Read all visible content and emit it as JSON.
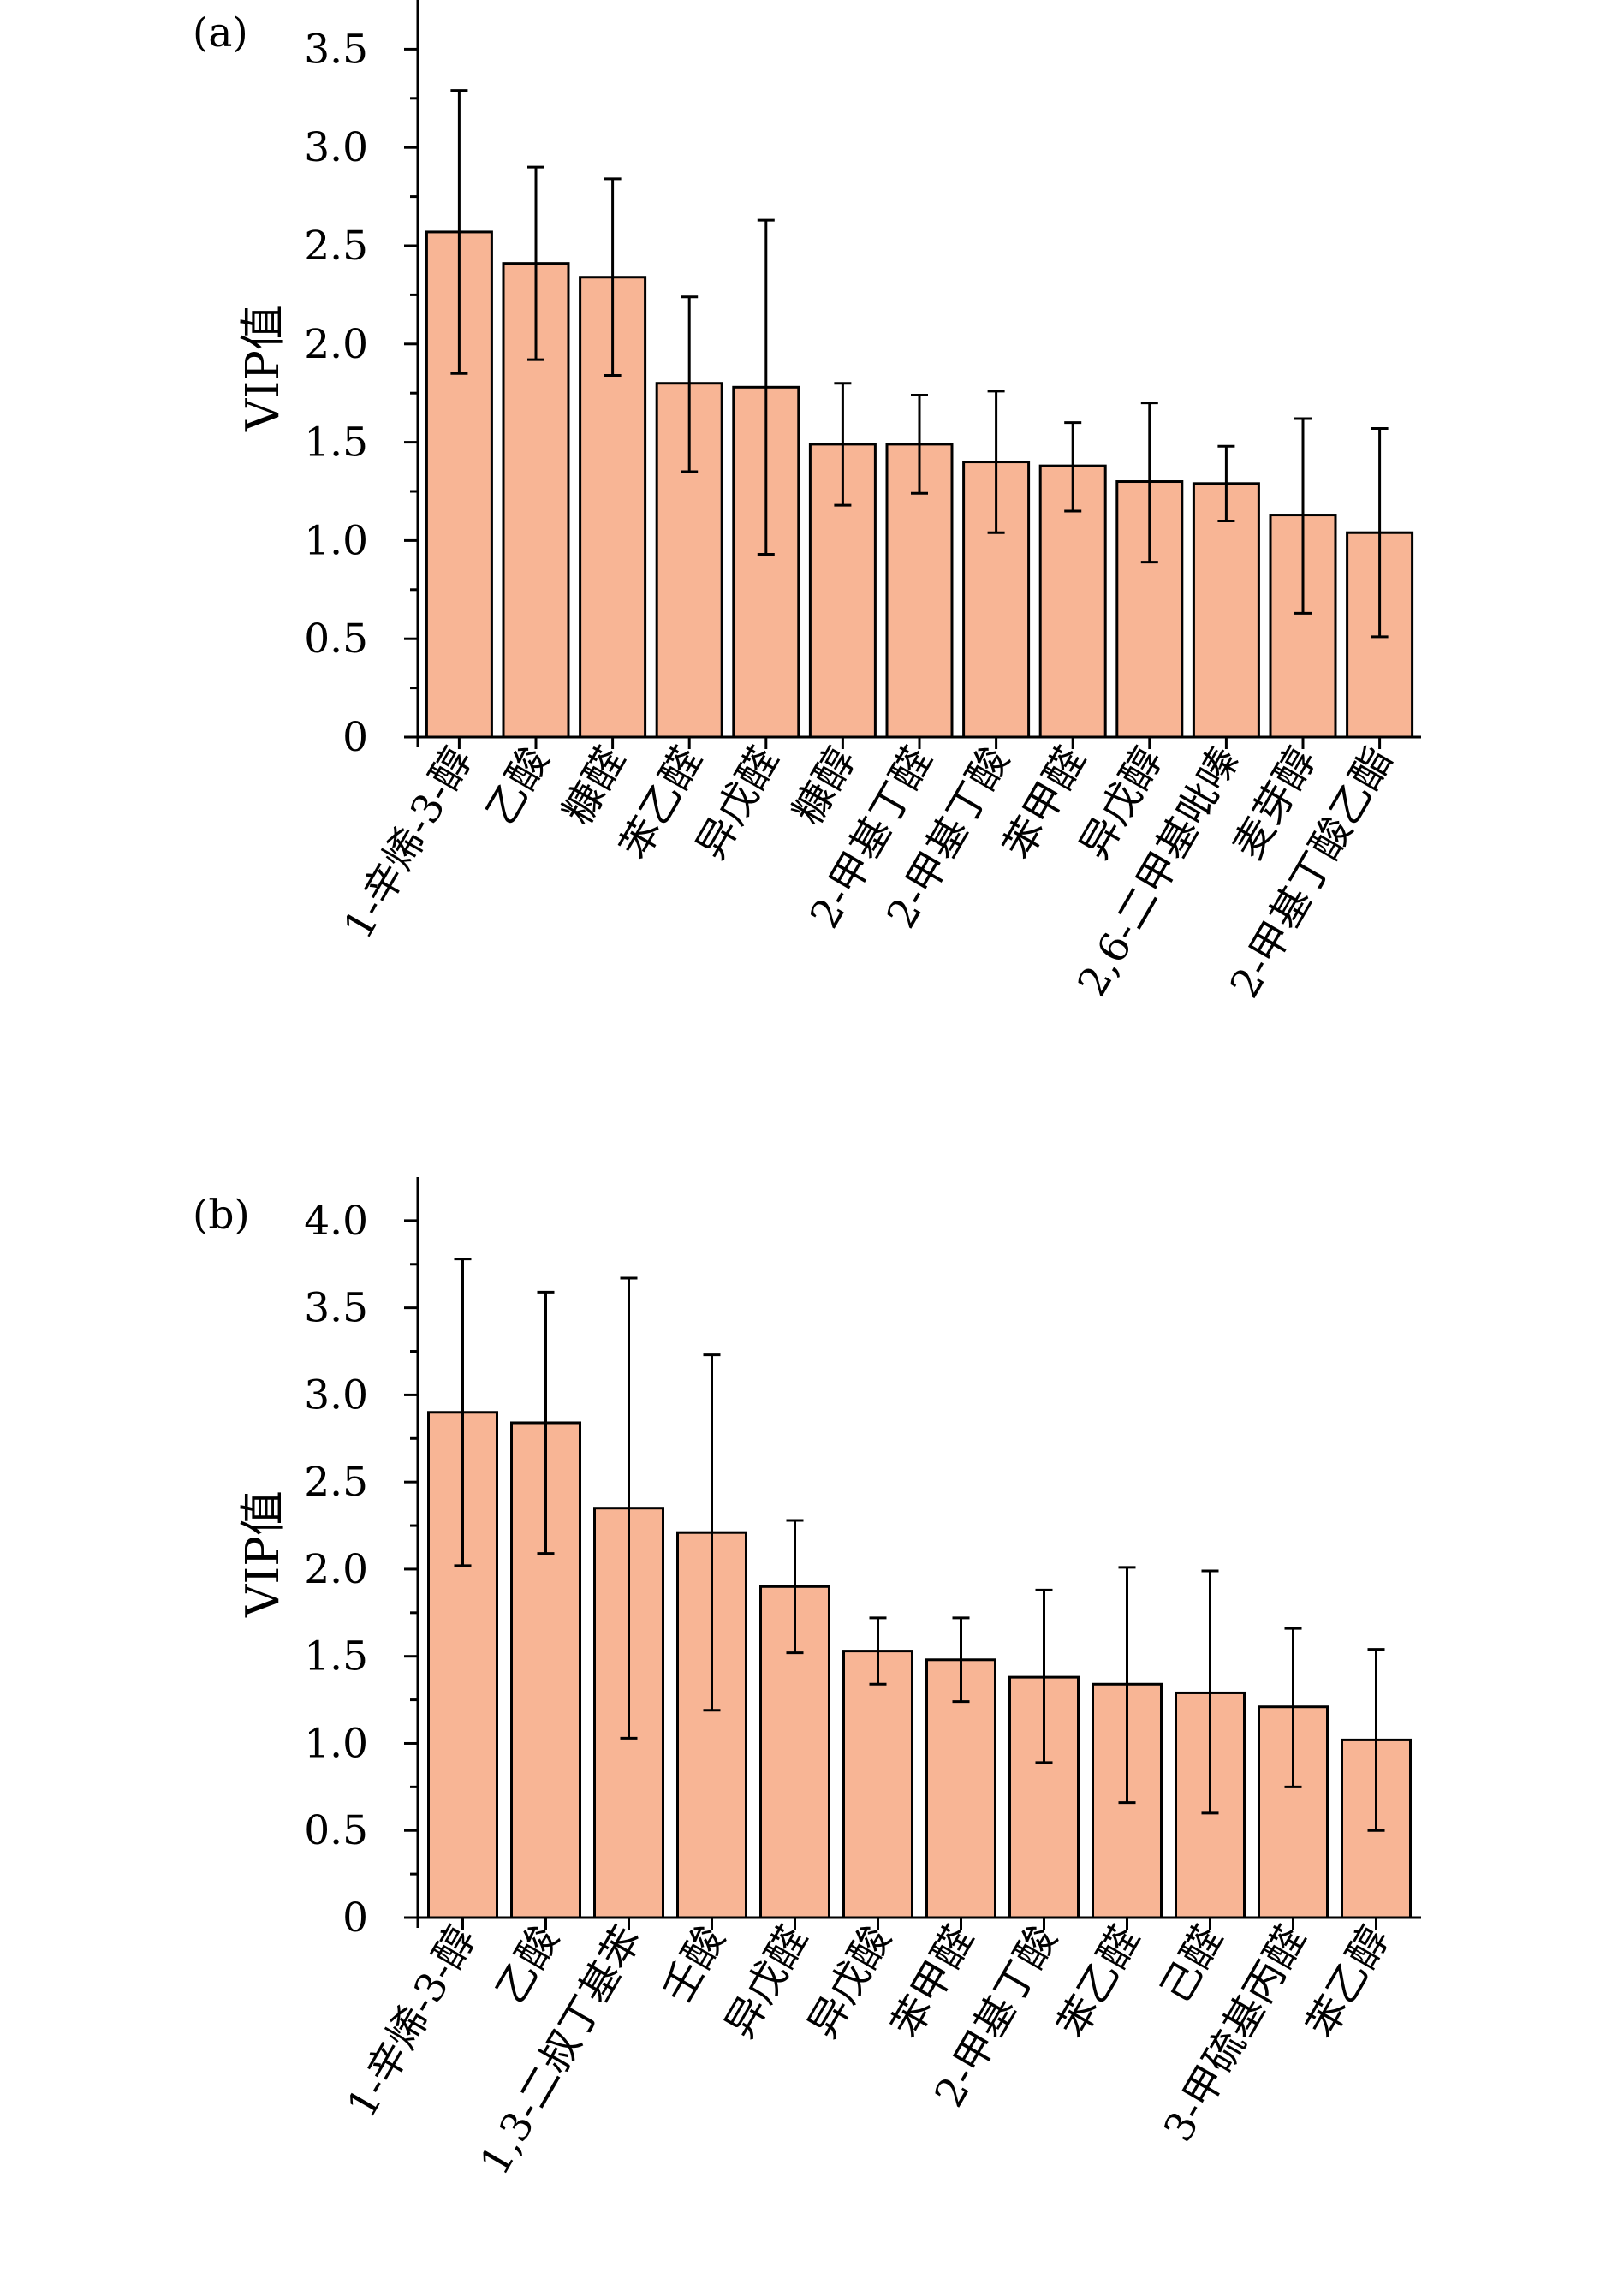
{
  "colors": {
    "bar_fill": "#F8B595",
    "bar_stroke": "#000000"
  },
  "chart_data": [
    {
      "type": "bar",
      "panel_label": "(a)",
      "title": "",
      "xlabel": "",
      "ylabel": "VIP值",
      "ylim": [
        0,
        3.75
      ],
      "yticks": [
        0,
        0.5,
        1.0,
        1.5,
        2.0,
        2.5,
        3.0,
        3.5
      ],
      "ytick_labels": [
        "0",
        "0.5",
        "1.0",
        "1.5",
        "2.0",
        "2.5",
        "3.0",
        "3.5"
      ],
      "grid": false,
      "categories": [
        "1-辛烯-3-醇",
        "乙酸",
        "糠醛",
        "苯乙醛",
        "异戊醛",
        "糠醇",
        "2-甲基丁醛",
        "2-甲基丁酸",
        "苯甲醛",
        "异戊醇",
        "2,6-二甲基吡嗪",
        "麦芽醇",
        "2-甲基丁酸乙酯"
      ],
      "values": [
        2.57,
        2.41,
        2.34,
        1.8,
        1.78,
        1.49,
        1.49,
        1.4,
        1.38,
        1.3,
        1.29,
        1.13,
        1.04
      ],
      "error_upper": [
        3.29,
        2.9,
        2.84,
        2.24,
        2.63,
        1.8,
        1.74,
        1.76,
        1.6,
        1.7,
        1.48,
        1.62,
        1.57
      ],
      "error_lower": [
        1.85,
        1.92,
        1.84,
        1.35,
        0.93,
        1.18,
        1.24,
        1.04,
        1.15,
        0.89,
        1.1,
        0.63,
        0.51
      ]
    },
    {
      "type": "bar",
      "panel_label": "(b)",
      "title": "",
      "xlabel": "",
      "ylabel": "VIP值",
      "ylim": [
        0,
        4.25
      ],
      "yticks": [
        0,
        0.5,
        1.0,
        1.5,
        2.0,
        2.5,
        3.0,
        3.5,
        4.0
      ],
      "ytick_labels": [
        "0",
        "0.5",
        "1.0",
        "1.5",
        "2.0",
        "2.5",
        "3.0",
        "3.5",
        "4.0"
      ],
      "grid": false,
      "categories": [
        "1-辛烯-3-醇",
        "乙酸",
        "1,3-二叔丁基苯",
        "壬酸",
        "异戊醛",
        "异戊酸",
        "苯甲醛",
        "2-甲基丁酸",
        "苯乙醛",
        "己醛",
        "3-甲硫基丙醛",
        "苯乙醇"
      ],
      "values": [
        2.9,
        2.84,
        2.35,
        2.21,
        1.9,
        1.53,
        1.48,
        1.38,
        1.34,
        1.29,
        1.21,
        1.02
      ],
      "error_upper": [
        3.78,
        3.59,
        3.67,
        3.23,
        2.28,
        1.72,
        1.72,
        1.88,
        2.01,
        1.99,
        1.66,
        1.54
      ],
      "error_lower": [
        2.02,
        2.09,
        1.03,
        1.19,
        1.52,
        1.34,
        1.24,
        0.89,
        0.66,
        0.6,
        0.75,
        0.5
      ]
    }
  ]
}
